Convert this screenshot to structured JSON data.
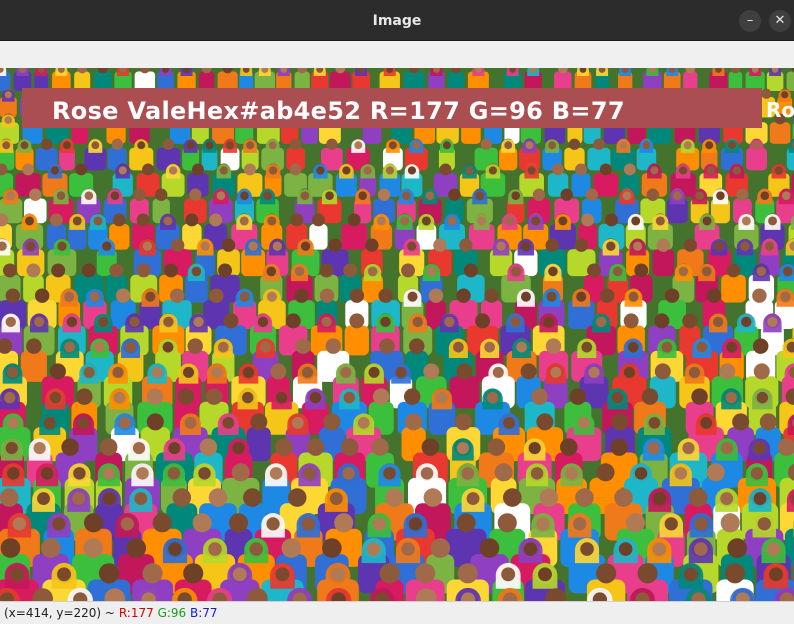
{
  "window": {
    "title": "Image",
    "minimize_icon": "minimize-icon",
    "close_icon": "close-icon",
    "minimize_glyph": "–",
    "close_glyph": "✕"
  },
  "overlay": {
    "text": "Rose ValeHex#ab4e52   R=177 G=96 B=77",
    "overflow_text": "Ro",
    "color": "#ab4e52"
  },
  "status": {
    "coords": "(x=414, y=220) ~",
    "r": "R:177",
    "g": "G:96",
    "b": "B:77"
  }
}
